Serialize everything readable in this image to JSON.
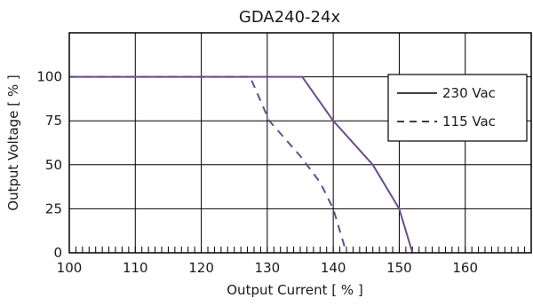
{
  "colors": {
    "series": "#6a4c8c",
    "grid": "#000000",
    "legend_line": "#000000"
  },
  "chart_data": {
    "type": "line",
    "title": "GDA240-24x",
    "xlabel": "Output Current [ % ]",
    "ylabel": "Output Voltage  [ % ]",
    "xlim": [
      100,
      170
    ],
    "ylim": [
      0,
      125
    ],
    "x_ticks": [
      100,
      110,
      120,
      130,
      140,
      150,
      160
    ],
    "y_ticks": [
      0,
      25,
      50,
      75,
      100
    ],
    "grid": true,
    "legend_position": "right",
    "series": [
      {
        "name": "230 Vac",
        "style": "solid",
        "x": [
          100,
          135.3,
          140,
          146,
          150,
          152
        ],
        "y": [
          100,
          100,
          75,
          50,
          25,
          0
        ]
      },
      {
        "name": "115 Vac",
        "style": "dashed",
        "x": [
          100,
          127.4,
          130.3,
          135,
          138,
          140,
          142
        ],
        "y": [
          100,
          100,
          75,
          55,
          40,
          25,
          0
        ]
      }
    ]
  }
}
